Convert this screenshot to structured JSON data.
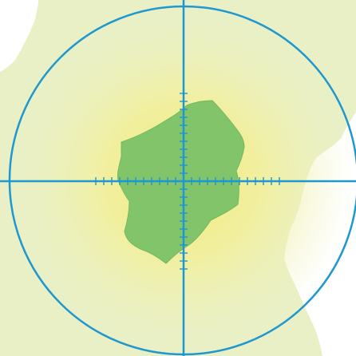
{
  "map": {
    "colors": {
      "sea": "#ffffff",
      "land": "#e9f0c6",
      "land_shore": "#eef3d2",
      "glow_center": "#f2ec7c",
      "target_region": "#82c46a",
      "target_region_edge": "#74b85c",
      "reticle": "#1f97cf"
    },
    "icons": {
      "reticle": "crosshair-icon",
      "target": "target-region-shape"
    }
  }
}
